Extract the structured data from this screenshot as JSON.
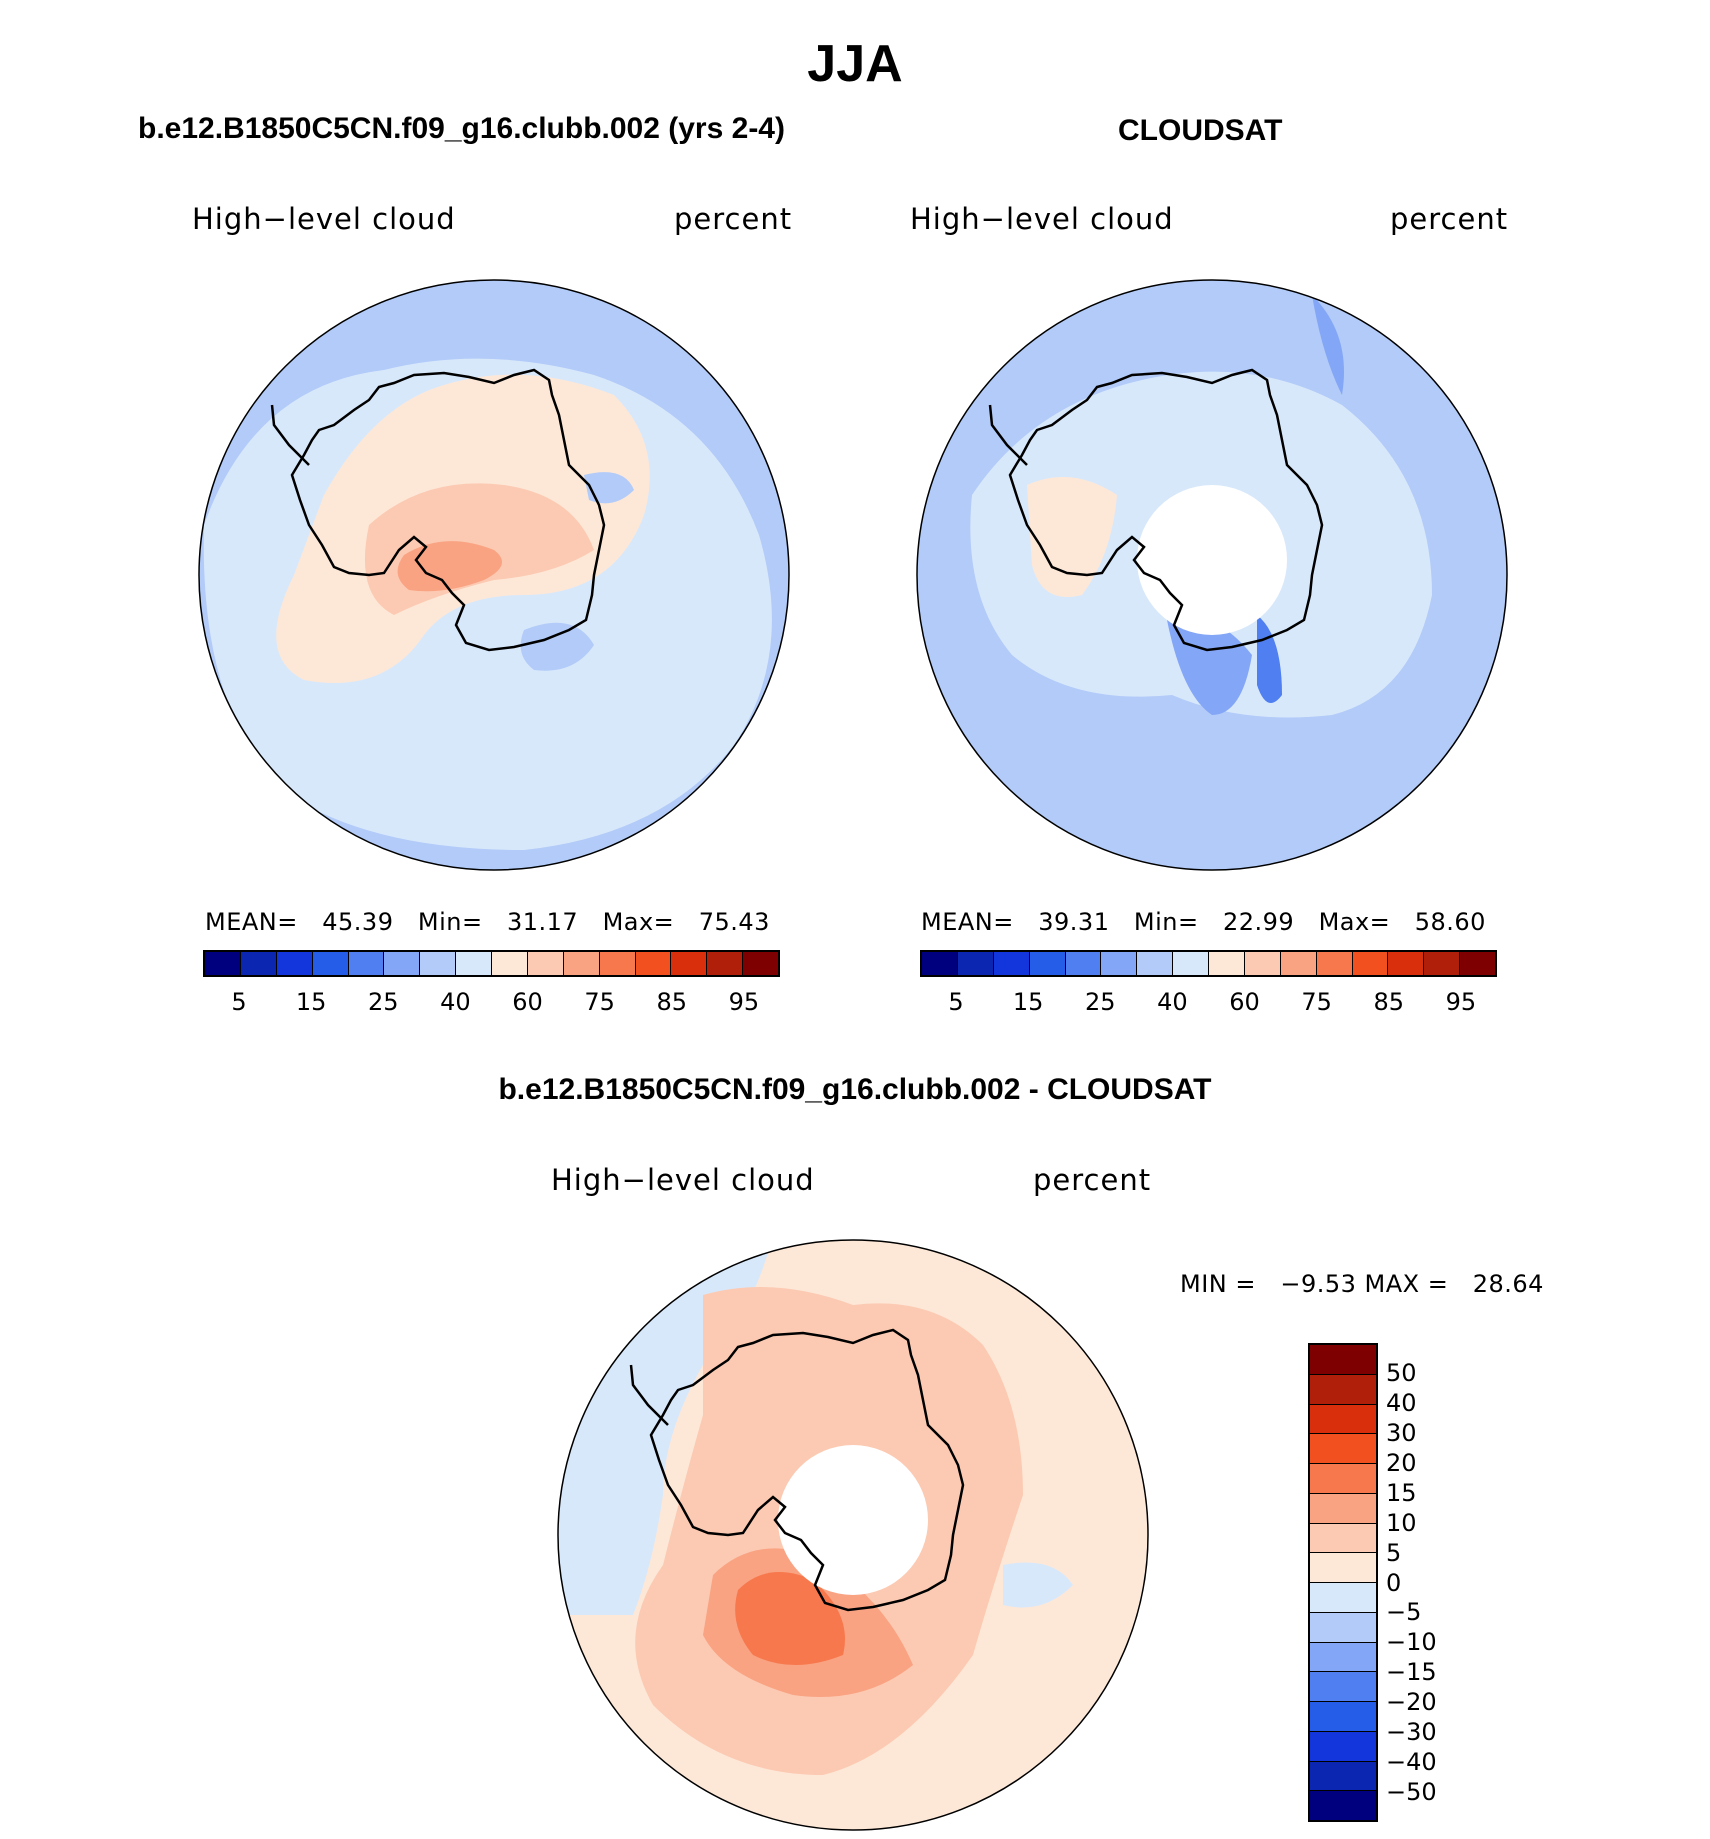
{
  "title": "JJA",
  "panels": {
    "model": {
      "title": "b.e12.B1850C5CN.f09_g16.clubb.002 (yrs 2-4)",
      "variable": "High−level cloud",
      "units": "percent",
      "stats": {
        "mean_label": "MEAN=",
        "mean": "45.39",
        "min_label": "Min=",
        "min": "31.17",
        "max_label": "Max=",
        "max": "75.43"
      }
    },
    "obs": {
      "title": "CLOUDSAT",
      "variable": "High−level cloud",
      "units": "percent",
      "stats": {
        "mean_label": "MEAN=",
        "mean": "39.31",
        "min_label": "Min=",
        "min": "22.99",
        "max_label": "Max=",
        "max": "58.60"
      }
    },
    "diff": {
      "title": "b.e12.B1850C5CN.f09_g16.clubb.002 - CLOUDSAT",
      "variable": "High−level cloud",
      "units": "percent",
      "minmax_text": "MIN =   −9.53 MAX =   28.64"
    }
  },
  "colorbars": {
    "absolute": {
      "colors": [
        "#00007e",
        "#0b26b0",
        "#1236dc",
        "#265de8",
        "#4f7ff0",
        "#84a6f6",
        "#b2cbf8",
        "#d8e8fb",
        "#fde8d8",
        "#fccab2",
        "#f9a383",
        "#f7784d",
        "#f2501f",
        "#d92f0c",
        "#b01f0a",
        "#7e0000"
      ],
      "labels": [
        "5",
        "15",
        "25",
        "40",
        "60",
        "75",
        "85",
        "95"
      ]
    },
    "difference": {
      "colors": [
        "#7e0000",
        "#b01f0a",
        "#d92f0c",
        "#f2501f",
        "#f7784d",
        "#f9a383",
        "#fccab2",
        "#fde8d8",
        "#d8e8fb",
        "#b2cbf8",
        "#84a6f6",
        "#4f7ff0",
        "#265de8",
        "#1236dc",
        "#0b26b0",
        "#00007e"
      ],
      "labels": [
        "50",
        "40",
        "30",
        "20",
        "15",
        "10",
        "5",
        "0",
        "−5",
        "−10",
        "−15",
        "−20",
        "−30",
        "−40",
        "−50"
      ]
    }
  }
}
